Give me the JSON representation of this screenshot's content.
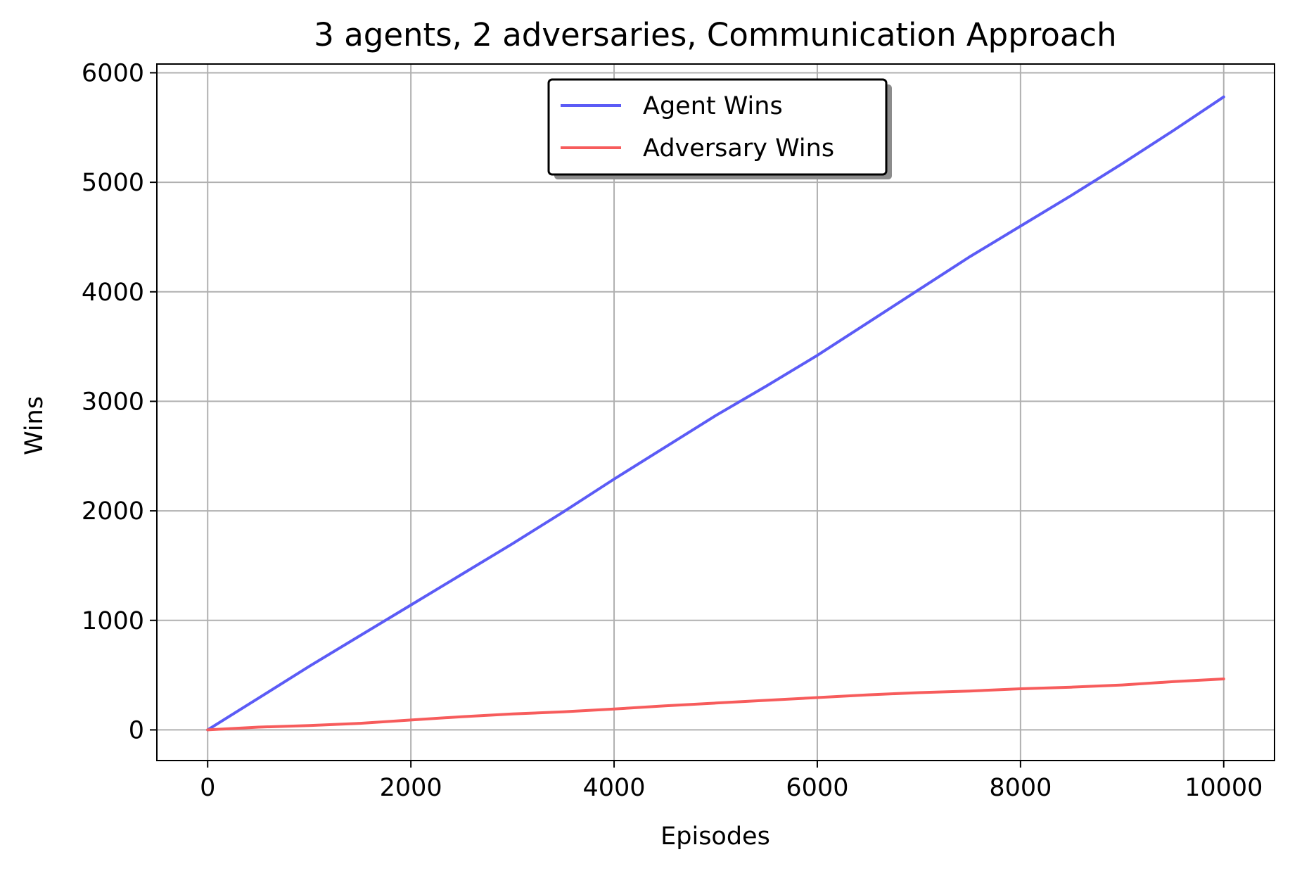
{
  "chart_data": {
    "type": "line",
    "title": "3 agents, 2 adversaries, Communication Approach",
    "xlabel": "Episodes",
    "ylabel": "Wins",
    "xlim": [
      -500,
      10500
    ],
    "ylim": [
      -280,
      6080
    ],
    "xticks": [
      0,
      2000,
      4000,
      6000,
      8000,
      10000
    ],
    "yticks": [
      0,
      1000,
      2000,
      3000,
      4000,
      5000,
      6000
    ],
    "xtick_labels": [
      "0",
      "2000",
      "4000",
      "6000",
      "8000",
      "10000"
    ],
    "ytick_labels": [
      "0",
      "1000",
      "2000",
      "3000",
      "4000",
      "5000",
      "6000"
    ],
    "grid": true,
    "legend_position": "top-center",
    "series": [
      {
        "name": "Agent Wins",
        "color": "#5b5bf6",
        "x": [
          0,
          500,
          1000,
          1500,
          2000,
          2500,
          3000,
          3500,
          4000,
          4500,
          5000,
          5500,
          6000,
          6500,
          7000,
          7500,
          8000,
          8500,
          9000,
          9500,
          10000
        ],
        "y": [
          0,
          290,
          580,
          860,
          1140,
          1420,
          1700,
          1990,
          2290,
          2580,
          2870,
          3140,
          3420,
          3720,
          4020,
          4320,
          4600,
          4880,
          5170,
          5470,
          5780
        ]
      },
      {
        "name": "Adversary Wins",
        "color": "#f75c5c",
        "x": [
          0,
          500,
          1000,
          1500,
          2000,
          2500,
          3000,
          3500,
          4000,
          4500,
          5000,
          5500,
          6000,
          6500,
          7000,
          7500,
          8000,
          8500,
          9000,
          9500,
          10000
        ],
        "y": [
          0,
          25,
          40,
          60,
          90,
          120,
          145,
          165,
          190,
          220,
          245,
          270,
          295,
          320,
          340,
          355,
          375,
          390,
          410,
          440,
          465
        ]
      }
    ]
  }
}
